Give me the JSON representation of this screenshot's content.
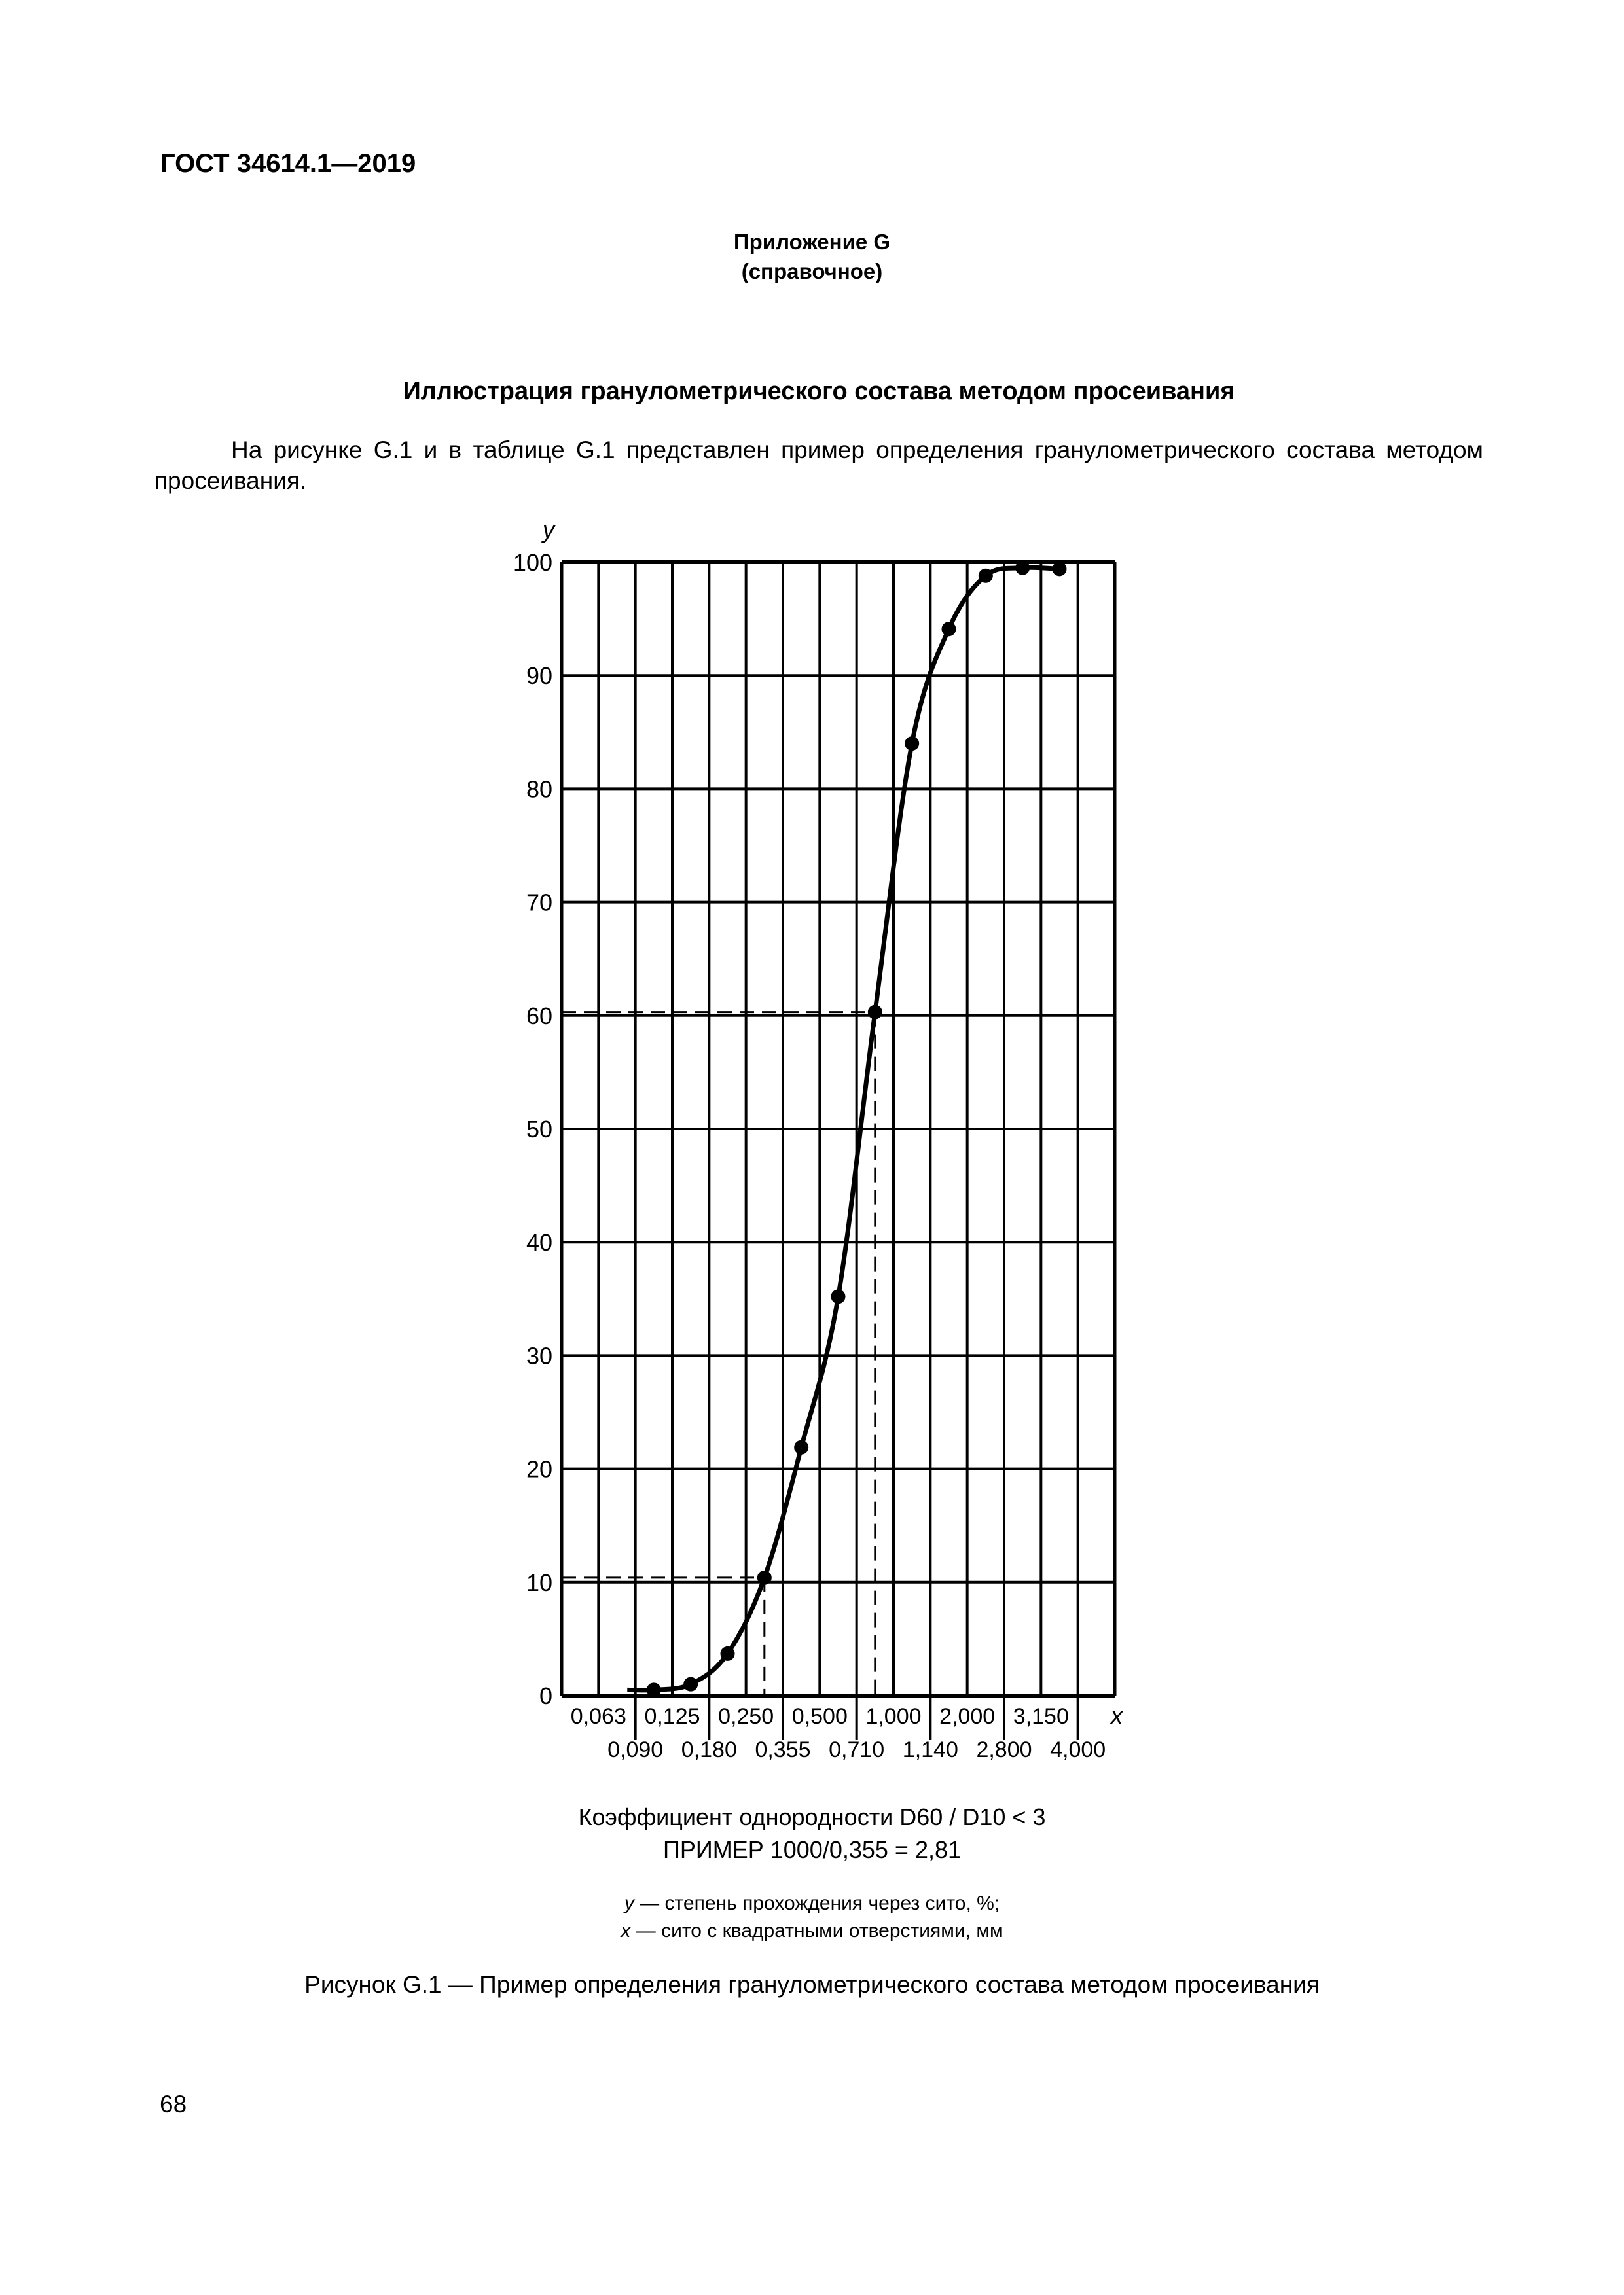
{
  "header": {
    "standard": "ГОСТ 34614.1—2019"
  },
  "annex": {
    "title": "Приложение G",
    "type": "(справочное)"
  },
  "section_title": "Иллюстрация гранулометрического состава методом просеивания",
  "paragraph": "На рисунке G.1 и в таблице G.1 представлен пример определения гранулометрического состава методом просеивания.",
  "figure": {
    "uniformity_note": "Коэффициент однородности D60 / D10 < 3",
    "example_note": "ПРИМЕР 1000/0,355 = 2,81",
    "legend": [
      {
        "var": "y",
        "text": " — степень прохождения через сито, %;"
      },
      {
        "var": "x",
        "text": " — сито с квадратными отверстиями, мм"
      }
    ],
    "caption": "Рисунок G.1 — Пример определения гранулометрического состава методом просеивания"
  },
  "page_number": "68",
  "chart_data": {
    "type": "line",
    "title": "",
    "xlabel": "x",
    "ylabel": "y",
    "ylim": [
      0,
      100
    ],
    "y_ticks": [
      0,
      10,
      20,
      30,
      40,
      50,
      60,
      70,
      80,
      90,
      100
    ],
    "x_tick_labels_top": [
      "0,063",
      "0,125",
      "0,250",
      "0,500",
      "1,000",
      "2,000",
      "3,150"
    ],
    "x_tick_labels_bottom": [
      "0,090",
      "0,180",
      "0,355",
      "0,710",
      "1,140",
      "2,800",
      "4,000"
    ],
    "grid": true,
    "series": [
      {
        "name": "Степень прохождения через сито, %",
        "x": [
          "0,125",
          "0,180",
          "0,250",
          "0,355",
          "0,500",
          "0,710",
          "1,000",
          "1,140",
          "2,000",
          "2,800",
          "3,150",
          "4,000"
        ],
        "values": [
          0.5,
          1.0,
          3.7,
          10.4,
          21.9,
          35.2,
          60.3,
          84.0,
          94.1,
          98.8,
          99.5,
          99.4
        ]
      }
    ],
    "annotations": [
      {
        "type": "dashed-guide",
        "y": 10.4,
        "x": "0,355",
        "label": "D10"
      },
      {
        "type": "dashed-guide",
        "y": 60.3,
        "x": "1,000",
        "label": "D60"
      }
    ]
  }
}
